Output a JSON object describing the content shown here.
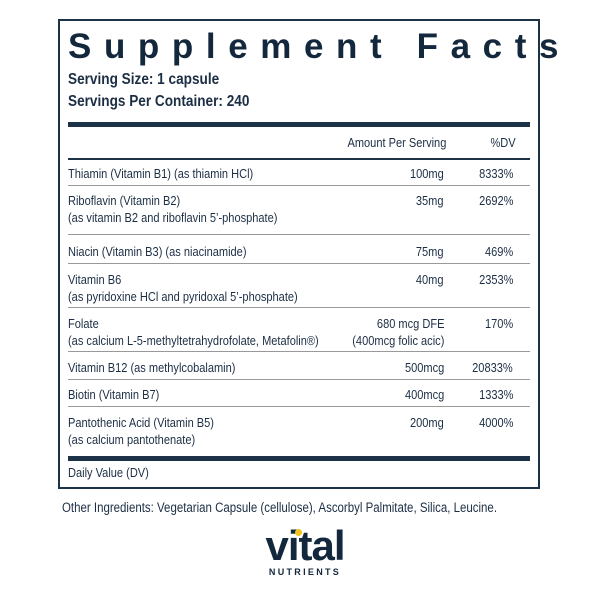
{
  "title": "Supplement Facts",
  "serving_size": "Serving Size: 1 capsule",
  "servings_per_container": "Servings Per Container: 240",
  "headers": {
    "amount": "Amount Per Serving",
    "dv": "%DV"
  },
  "rows": [
    {
      "name": "Thiamin (Vitamin B1) (as thiamin HCl)",
      "amount": "100mg",
      "dv": "8333%"
    },
    {
      "name": "Riboflavin (Vitamin B2)",
      "name2": "(as vitamin B2 and riboflavin 5’-phosphate)",
      "amount": "35mg",
      "dv": "2692%"
    },
    {
      "name": "Niacin (Vitamin B3) (as niacinamide)",
      "amount": "75mg",
      "dv": "469%"
    },
    {
      "name": "Vitamin B6",
      "name2": "(as pyridoxine HCl and pyridoxal 5’-phosphate)",
      "amount": "40mg",
      "dv": "2353%"
    },
    {
      "name": "Folate",
      "name2": "(as calcium L-5-methyltetrahydrofolate, Metafolin®)",
      "amount": "680 mcg  DFE",
      "amount2": "(400mcg folic acic)",
      "dv": "170%"
    },
    {
      "name": "Vitamin B12 (as methylcobalamin)",
      "amount": "500mcg",
      "dv": "20833%"
    },
    {
      "name": "Biotin (Vitamin B7)",
      "amount": "400mcg",
      "dv": "1333%"
    },
    {
      "name": "Pantothenic Acid (Vitamin B5)",
      "name2": "(as calcium pantothenate)",
      "amount": "200mg",
      "dv": "4000%"
    }
  ],
  "footnote": "Daily Value (DV)",
  "other_ingredients": "Other Ingredients: Vegetarian Capsule (cellulose), Ascorbyl Palmitate, Silica, Leucine.",
  "logo": {
    "word": "vital",
    "sub": "NUTRIENTS"
  },
  "colors": {
    "text": "#1c2e44",
    "accent": "#f3c21b"
  }
}
